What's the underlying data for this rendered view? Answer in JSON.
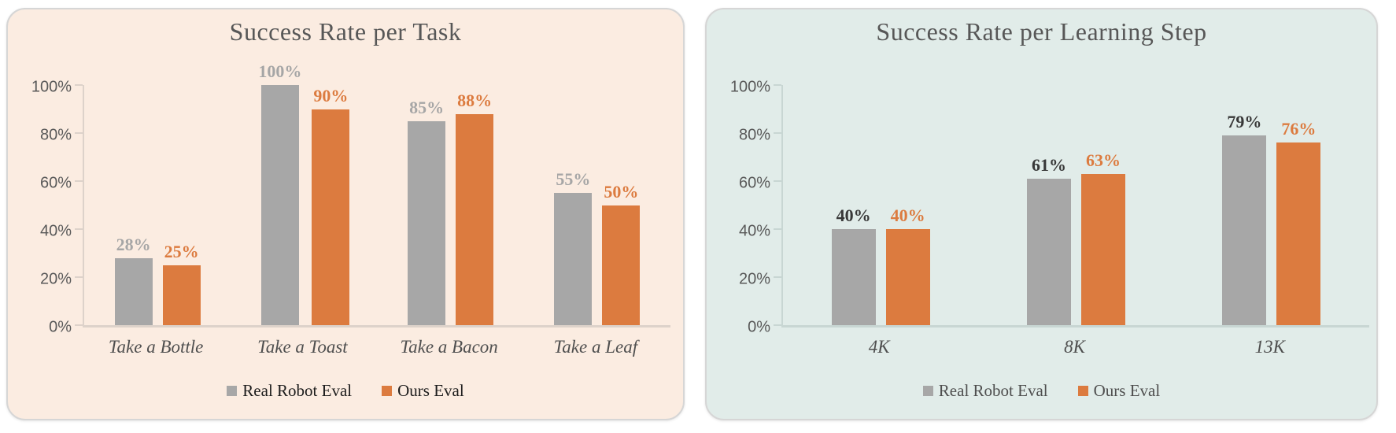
{
  "page": {
    "background_color": "#ffffff"
  },
  "chart_data": [
    {
      "id": "success-rate-per-task",
      "type": "bar",
      "title": "Success Rate per Task",
      "categories": [
        "Take a Bottle",
        "Take a Toast",
        "Take a Bacon",
        "Take a Leaf"
      ],
      "series": [
        {
          "name": "Real Robot Eval",
          "values": [
            28,
            100,
            85,
            55
          ],
          "color": "#a7a7a7",
          "label_color": "#a6a6a6"
        },
        {
          "name": "Ours Eval",
          "values": [
            25,
            90,
            88,
            50
          ],
          "color": "#dc7b3f",
          "label_color": "#dc7b3f"
        }
      ],
      "data_label_format": "percent",
      "xlabel": "",
      "ylabel": "",
      "ylim": [
        0,
        100
      ],
      "y_ticks": [
        "0%",
        "20%",
        "40%",
        "60%",
        "80%",
        "100%"
      ],
      "grid": false,
      "legend_position": "bottom",
      "legend_entries": [
        {
          "label": "Real Robot Eval",
          "swatch_color": "#a7a7a7"
        },
        {
          "label": "Ours Eval",
          "swatch_color": "#dc7b3f"
        }
      ],
      "legend_text_color": "#1c1c1c",
      "panel_background": "#fbece1",
      "axis_color": "#ddd2ca"
    },
    {
      "id": "success-rate-per-learning-step",
      "type": "bar",
      "title": "Success Rate per Learning Step",
      "categories": [
        "4K",
        "8K",
        "13K"
      ],
      "series": [
        {
          "name": "Real Robot Eval",
          "values": [
            40,
            61,
            79
          ],
          "color": "#a7a7a7",
          "label_color": "#383838"
        },
        {
          "name": "Ours Eval",
          "values": [
            40,
            63,
            76
          ],
          "color": "#dc7b3f",
          "label_color": "#dc7b3f"
        }
      ],
      "data_label_format": "percent",
      "xlabel": "",
      "ylabel": "",
      "ylim": [
        0,
        100
      ],
      "y_ticks": [
        "0%",
        "20%",
        "40%",
        "60%",
        "80%",
        "100%"
      ],
      "grid": false,
      "legend_position": "bottom",
      "legend_entries": [
        {
          "label": "Real Robot Eval",
          "swatch_color": "#a7a7a7"
        },
        {
          "label": "Ours Eval",
          "swatch_color": "#dc7b3f"
        }
      ],
      "legend_text_color": "#4e4e4e",
      "panel_background": "#e1ece9",
      "axis_color": "#c8d6d3"
    }
  ]
}
